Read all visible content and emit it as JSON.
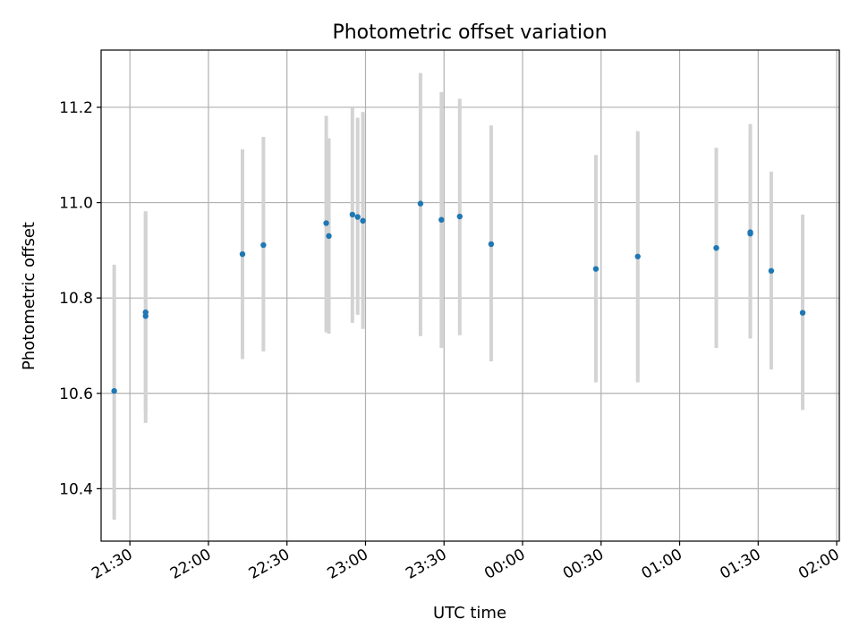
{
  "chart_data": {
    "type": "scatter",
    "title": "Photometric offset variation",
    "xlabel": "UTC time",
    "ylabel": "Photometric offset",
    "grid": true,
    "legend": "none",
    "colors": {
      "point": "#1f77b4",
      "errorbar": "#d3d3d3",
      "grid": "#b0b0b0",
      "axes": "#000000",
      "background": "#ffffff"
    },
    "xlim": [
      "21:19",
      "02:01"
    ],
    "ylim": [
      10.29,
      11.32
    ],
    "x_ticks": [
      {
        "value": "21:30",
        "label": "21:30"
      },
      {
        "value": "22:00",
        "label": "22:00"
      },
      {
        "value": "22:30",
        "label": "22:30"
      },
      {
        "value": "23:00",
        "label": "23:00"
      },
      {
        "value": "23:30",
        "label": "23:30"
      },
      {
        "value": "00:00",
        "label": "00:00"
      },
      {
        "value": "00:30",
        "label": "00:30"
      },
      {
        "value": "01:00",
        "label": "01:00"
      },
      {
        "value": "01:30",
        "label": "01:30"
      },
      {
        "value": "02:00",
        "label": "02:00"
      }
    ],
    "y_ticks": [
      {
        "value": 10.4,
        "label": "10.4"
      },
      {
        "value": 10.6,
        "label": "10.6"
      },
      {
        "value": 10.8,
        "label": "10.8"
      },
      {
        "value": 11.0,
        "label": "11.0"
      },
      {
        "value": 11.2,
        "label": "11.2"
      }
    ],
    "points": [
      {
        "x": "21:24",
        "y": 10.605,
        "y_low": 10.335,
        "y_high": 10.87
      },
      {
        "x": "21:36",
        "y": 10.762,
        "y_low": 10.538,
        "y_high": 10.982
      },
      {
        "x": "21:36",
        "y": 10.77,
        "y_low": 10.56,
        "y_high": 10.98
      },
      {
        "x": "22:13",
        "y": 10.892,
        "y_low": 10.672,
        "y_high": 11.112
      },
      {
        "x": "22:21",
        "y": 10.911,
        "y_low": 10.688,
        "y_high": 11.138
      },
      {
        "x": "22:45",
        "y": 10.957,
        "y_low": 10.728,
        "y_high": 11.182
      },
      {
        "x": "22:46",
        "y": 10.93,
        "y_low": 10.725,
        "y_high": 11.135
      },
      {
        "x": "22:55",
        "y": 10.975,
        "y_low": 10.748,
        "y_high": 11.2
      },
      {
        "x": "22:57",
        "y": 10.97,
        "y_low": 10.765,
        "y_high": 11.178
      },
      {
        "x": "22:59",
        "y": 10.962,
        "y_low": 10.735,
        "y_high": 11.19
      },
      {
        "x": "23:21",
        "y": 10.998,
        "y_low": 10.72,
        "y_high": 11.272
      },
      {
        "x": "23:29",
        "y": 10.964,
        "y_low": 10.695,
        "y_high": 11.232
      },
      {
        "x": "23:36",
        "y": 10.971,
        "y_low": 10.722,
        "y_high": 11.218
      },
      {
        "x": "23:48",
        "y": 10.913,
        "y_low": 10.667,
        "y_high": 11.162
      },
      {
        "x": "00:28",
        "y": 10.861,
        "y_low": 10.623,
        "y_high": 11.1
      },
      {
        "x": "00:44",
        "y": 10.887,
        "y_low": 10.623,
        "y_high": 11.15
      },
      {
        "x": "01:14",
        "y": 10.905,
        "y_low": 10.695,
        "y_high": 11.115
      },
      {
        "x": "01:27",
        "y": 10.938,
        "y_low": 10.715,
        "y_high": 11.165
      },
      {
        "x": "01:27",
        "y": 10.935,
        "y_low": 10.715,
        "y_high": 11.155
      },
      {
        "x": "01:35",
        "y": 10.857,
        "y_low": 10.65,
        "y_high": 11.065
      },
      {
        "x": "01:47",
        "y": 10.769,
        "y_low": 10.565,
        "y_high": 10.975
      }
    ]
  }
}
